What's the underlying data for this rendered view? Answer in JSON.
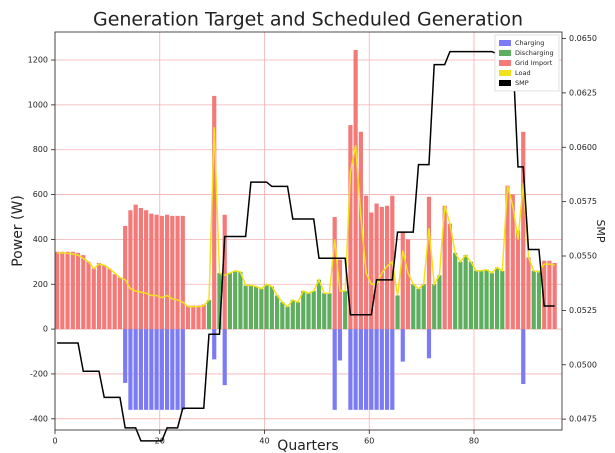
{
  "chart_data": {
    "type": "bar",
    "title": "Generation Target and Scheduled Generation",
    "x_label": "Quarters",
    "y_label": "Power (W)",
    "y2_label": "SMP",
    "x": [
      0,
      1,
      2,
      3,
      4,
      5,
      6,
      7,
      8,
      9,
      10,
      11,
      12,
      13,
      14,
      15,
      16,
      17,
      18,
      19,
      20,
      21,
      22,
      23,
      24,
      25,
      26,
      27,
      28,
      29,
      30,
      31,
      32,
      33,
      34,
      35,
      36,
      37,
      38,
      39,
      40,
      41,
      42,
      43,
      44,
      45,
      46,
      47,
      48,
      49,
      50,
      51,
      52,
      53,
      54,
      55,
      56,
      57,
      58,
      59,
      60,
      61,
      62,
      63,
      64,
      65,
      66,
      67,
      68,
      69,
      70,
      71,
      72,
      73,
      74,
      75,
      76,
      77,
      78,
      79,
      80,
      81,
      82,
      83,
      84,
      85,
      86,
      87,
      88,
      89,
      90,
      91,
      92,
      93,
      94,
      95
    ],
    "xlim": [
      0,
      96.8
    ],
    "xticks": [
      0,
      20,
      40,
      60,
      80
    ],
    "ylim": [
      -450,
      1325
    ],
    "yticks": [
      -400,
      -200,
      0,
      200,
      400,
      600,
      800,
      1000,
      1200
    ],
    "y2lim": [
      0.047,
      0.0653
    ],
    "y2ticks": [
      {
        "value": 0.0475,
        "label": "0.0475"
      },
      {
        "value": 0.05,
        "label": "0.0500"
      },
      {
        "value": 0.0525,
        "label": "0.0525"
      },
      {
        "value": 0.055,
        "label": "0.0550"
      },
      {
        "value": 0.0575,
        "label": "0.0575"
      },
      {
        "value": 0.06,
        "label": "0.0600"
      },
      {
        "value": 0.0625,
        "label": "0.0625"
      },
      {
        "value": 0.065,
        "label": "0.0650"
      }
    ],
    "grid": true,
    "legend": "upper right",
    "series": [
      {
        "name": "Charging",
        "type": "bar",
        "color": "#7b7bf5",
        "values": [
          0,
          0,
          0,
          0,
          0,
          0,
          0,
          0,
          0,
          0,
          0,
          0,
          0,
          -240,
          -360,
          -360,
          -360,
          -360,
          -360,
          -360,
          -360,
          -360,
          -360,
          -360,
          -360,
          0,
          0,
          0,
          0,
          0,
          -135,
          0,
          -250,
          0,
          0,
          0,
          0,
          0,
          0,
          0,
          0,
          0,
          0,
          0,
          0,
          0,
          0,
          0,
          0,
          0,
          0,
          0,
          0,
          -360,
          -140,
          0,
          -360,
          -360,
          -360,
          -360,
          -360,
          -360,
          -360,
          -360,
          -360,
          0,
          -145,
          0,
          0,
          0,
          0,
          -130,
          0,
          0,
          0,
          0,
          0,
          0,
          0,
          0,
          0,
          0,
          0,
          0,
          0,
          0,
          0,
          0,
          0,
          -245,
          0,
          0,
          0,
          0,
          0,
          0
        ]
      },
      {
        "name": "Discharging",
        "type": "bar",
        "color": "#5fae5f",
        "values": [
          0,
          0,
          0,
          0,
          0,
          0,
          0,
          0,
          0,
          0,
          0,
          0,
          0,
          0,
          0,
          0,
          0,
          0,
          0,
          0,
          0,
          0,
          0,
          0,
          0,
          0,
          0,
          0,
          0,
          130,
          0,
          250,
          0,
          250,
          260,
          255,
          195,
          195,
          190,
          180,
          200,
          190,
          150,
          120,
          100,
          130,
          120,
          170,
          160,
          170,
          220,
          160,
          160,
          0,
          0,
          170,
          0,
          0,
          0,
          0,
          0,
          0,
          0,
          0,
          0,
          150,
          0,
          0,
          200,
          180,
          200,
          0,
          200,
          240,
          0,
          0,
          340,
          300,
          330,
          300,
          260,
          260,
          265,
          250,
          275,
          260,
          0,
          0,
          0,
          0,
          0,
          260,
          260,
          0,
          0,
          0
        ]
      },
      {
        "name": "Grid Import",
        "type": "bar",
        "color": "#f47a7a",
        "values": [
          345,
          345,
          345,
          345,
          340,
          330,
          300,
          270,
          295,
          285,
          270,
          245,
          230,
          460,
          530,
          555,
          540,
          530,
          515,
          510,
          505,
          510,
          505,
          505,
          505,
          105,
          105,
          105,
          110,
          0,
          1040,
          0,
          510,
          0,
          0,
          0,
          0,
          0,
          0,
          0,
          0,
          0,
          0,
          0,
          0,
          0,
          0,
          0,
          0,
          0,
          0,
          0,
          0,
          500,
          310,
          0,
          910,
          1245,
          880,
          595,
          520,
          560,
          545,
          550,
          595,
          0,
          435,
          400,
          0,
          0,
          0,
          590,
          0,
          0,
          550,
          470,
          0,
          0,
          0,
          0,
          0,
          0,
          0,
          0,
          0,
          0,
          640,
          600,
          440,
          880,
          320,
          0,
          0,
          305,
          305,
          295
        ]
      },
      {
        "name": "Load",
        "type": "line",
        "color": "#f2e21c",
        "values": [
          340,
          340,
          338,
          335,
          330,
          315,
          300,
          270,
          290,
          285,
          270,
          250,
          230,
          220,
          180,
          170,
          165,
          160,
          150,
          150,
          140,
          150,
          135,
          130,
          120,
          100,
          100,
          100,
          105,
          130,
          900,
          250,
          240,
          250,
          260,
          255,
          195,
          195,
          190,
          180,
          200,
          190,
          150,
          120,
          100,
          130,
          120,
          170,
          160,
          170,
          220,
          160,
          160,
          400,
          170,
          170,
          700,
          820,
          500,
          250,
          200,
          200,
          250,
          280,
          300,
          150,
          350,
          250,
          200,
          180,
          200,
          450,
          200,
          240,
          550,
          470,
          340,
          300,
          330,
          300,
          260,
          260,
          265,
          250,
          275,
          260,
          640,
          550,
          400,
          650,
          320,
          260,
          255,
          290,
          290,
          285
        ]
      },
      {
        "name": "SMP",
        "type": "line",
        "color": "#000000",
        "axis": "y2",
        "values": [
          0.051,
          0.051,
          0.051,
          0.051,
          0.051,
          0.0497,
          0.0497,
          0.0497,
          0.0497,
          0.0485,
          0.0485,
          0.0485,
          0.0485,
          0.0471,
          0.0471,
          0.0471,
          0.0465,
          0.0465,
          0.0465,
          0.0465,
          0.0465,
          0.0471,
          0.0471,
          0.0471,
          0.048,
          0.048,
          0.048,
          0.048,
          0.048,
          0.0514,
          0.0514,
          0.0514,
          0.0559,
          0.0559,
          0.0559,
          0.0559,
          0.0559,
          0.0584,
          0.0584,
          0.0584,
          0.0584,
          0.0582,
          0.0582,
          0.0582,
          0.0582,
          0.0567,
          0.0567,
          0.0567,
          0.0567,
          0.0567,
          0.0549,
          0.0549,
          0.0549,
          0.0549,
          0.0549,
          0.0549,
          0.0523,
          0.0523,
          0.0523,
          0.0523,
          0.0523,
          0.0539,
          0.0539,
          0.0539,
          0.0539,
          0.0561,
          0.0561,
          0.0561,
          0.0561,
          0.0592,
          0.0592,
          0.0592,
          0.0638,
          0.0638,
          0.0638,
          0.0644,
          0.0644,
          0.0644,
          0.0644,
          0.0644,
          0.0644,
          0.0644,
          0.0644,
          0.0644,
          0.0643,
          0.0643,
          0.0643,
          0.0643,
          0.0591,
          0.0591,
          0.0553,
          0.0553,
          0.0553,
          0.0527,
          0.0527,
          0.0527
        ]
      }
    ]
  }
}
